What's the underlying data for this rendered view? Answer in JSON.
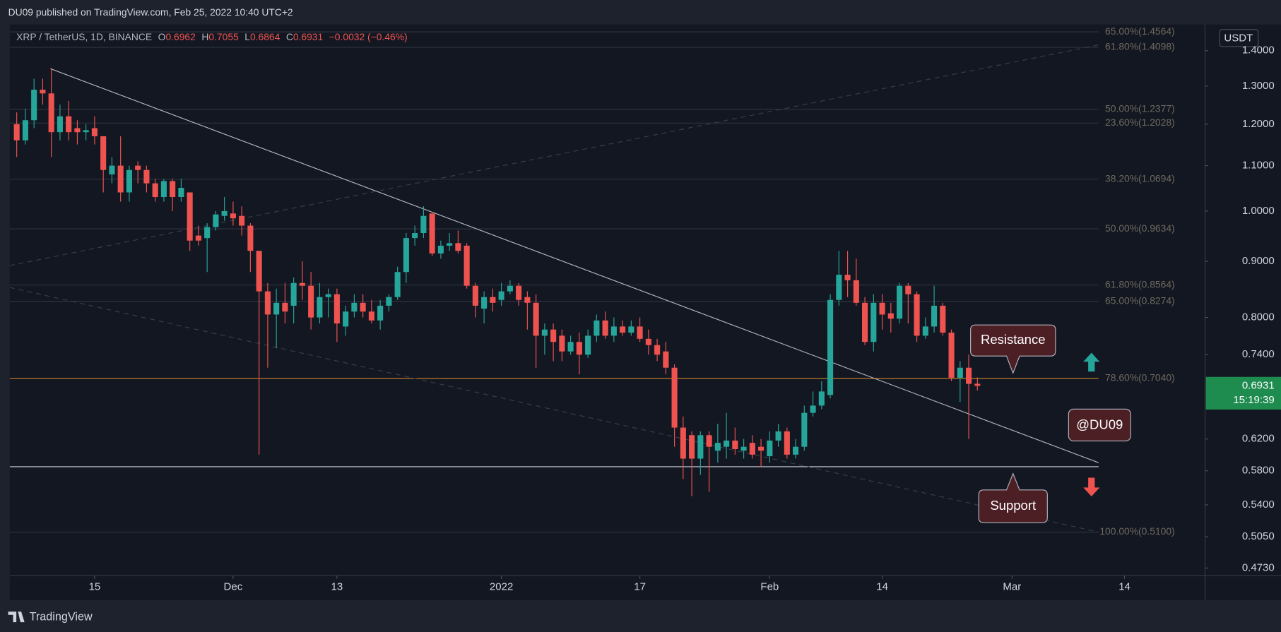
{
  "header": {
    "published": "DU09 published on TradingView.com, Feb 25, 2022 10:40 UTC+2"
  },
  "chart_data": {
    "type": "candlestick",
    "legend": {
      "symbol": "XRP / TetherUS, 1D, BINANCE",
      "labels": [
        "O",
        "H",
        "L",
        "C"
      ],
      "values": [
        0.6962,
        0.7055,
        0.6864,
        0.6931
      ],
      "change": "−0.0032 (−0.46%)"
    },
    "currency": "USDT",
    "log_scale": true,
    "grid": false,
    "up_color": "#26a69a",
    "down_color": "#ef5350",
    "xlim": [
      -0.8,
      137.3
    ],
    "xticks": [
      {
        "value": 9,
        "label": "15"
      },
      {
        "value": 25,
        "label": "Dec"
      },
      {
        "value": 37,
        "label": "13"
      },
      {
        "value": 56,
        "label": "2022"
      },
      {
        "value": 72,
        "label": "17"
      },
      {
        "value": 87,
        "label": "Feb"
      },
      {
        "value": 100,
        "label": "14"
      },
      {
        "value": 115,
        "label": "Mar"
      },
      {
        "value": 128,
        "label": "14"
      }
    ],
    "ylim": [
      0.4655,
      1.479
    ],
    "yticks": [
      {
        "value": 1.4,
        "label": "1.4000"
      },
      {
        "value": 1.3,
        "label": "1.3000"
      },
      {
        "value": 1.2,
        "label": "1.2000"
      },
      {
        "value": 1.1,
        "label": "1.1000"
      },
      {
        "value": 1.0,
        "label": "1.0000"
      },
      {
        "value": 0.9,
        "label": "0.9000"
      },
      {
        "value": 0.8,
        "label": "0.8000"
      },
      {
        "value": 0.74,
        "label": "0.7400"
      },
      {
        "value": 0.62,
        "label": "0.6200"
      },
      {
        "value": 0.58,
        "label": "0.5800"
      },
      {
        "value": 0.54,
        "label": "0.5400"
      },
      {
        "value": 0.505,
        "label": "0.5050"
      },
      {
        "value": 0.473,
        "label": "0.4730"
      }
    ],
    "candles": {
      "open": [
        1.2,
        1.16,
        1.21,
        1.29,
        1.28,
        1.18,
        1.22,
        1.19,
        1.18,
        1.19,
        1.17,
        1.08,
        1.1,
        1.04,
        1.1,
        1.09,
        1.06,
        1.03,
        1.065,
        1.03,
        1.04,
        0.95,
        0.945,
        0.967,
        0.99,
        0.995,
        0.99,
        0.97,
        0.92,
        0.845,
        0.805,
        0.825,
        0.82,
        0.86,
        0.855,
        0.8,
        0.835,
        0.84,
        0.785,
        0.81,
        0.825,
        0.81,
        0.795,
        0.82,
        0.835,
        0.88,
        0.945,
        0.955,
        0.995,
        0.915,
        0.93,
        0.935,
        0.93,
        0.855,
        0.815,
        0.835,
        0.83,
        0.845,
        0.855,
        0.835,
        0.825,
        0.77,
        0.78,
        0.77,
        0.745,
        0.76,
        0.74,
        0.77,
        0.795,
        0.77,
        0.785,
        0.775,
        0.785,
        0.765,
        0.755,
        0.745,
        0.72,
        0.635,
        0.625,
        0.595,
        0.625,
        0.605,
        0.61,
        0.618,
        0.605,
        0.615,
        0.61,
        0.598,
        0.618,
        0.63,
        0.6,
        0.61,
        0.655,
        0.665,
        0.68,
        0.83,
        0.875,
        0.865,
        0.825,
        0.76,
        0.825,
        0.807,
        0.798,
        0.855,
        0.84,
        0.77,
        0.785,
        0.82,
        0.775,
        0.705,
        0.72,
        0.6962
      ],
      "high": [
        1.23,
        1.24,
        1.32,
        1.32,
        1.35,
        1.25,
        1.26,
        1.21,
        1.2,
        1.22,
        1.17,
        1.12,
        1.17,
        1.1,
        1.11,
        1.1,
        1.07,
        1.07,
        1.07,
        1.07,
        1.04,
        0.97,
        0.975,
        1.0,
        1.03,
        1.02,
        1.01,
        0.975,
        0.92,
        0.86,
        0.85,
        0.86,
        0.87,
        0.9,
        0.88,
        0.86,
        0.85,
        0.85,
        0.82,
        0.84,
        0.84,
        0.83,
        0.83,
        0.84,
        0.89,
        0.955,
        0.97,
        1.01,
        0.995,
        0.94,
        0.955,
        0.96,
        0.935,
        0.86,
        0.845,
        0.85,
        0.86,
        0.865,
        0.86,
        0.845,
        0.84,
        0.79,
        0.79,
        0.78,
        0.77,
        0.775,
        0.78,
        0.805,
        0.81,
        0.8,
        0.795,
        0.795,
        0.8,
        0.78,
        0.765,
        0.76,
        0.725,
        0.65,
        0.63,
        0.63,
        0.63,
        0.64,
        0.655,
        0.635,
        0.62,
        0.625,
        0.62,
        0.63,
        0.64,
        0.635,
        0.62,
        0.665,
        0.685,
        0.7,
        0.84,
        0.92,
        0.92,
        0.905,
        0.835,
        0.84,
        0.84,
        0.825,
        0.86,
        0.86,
        0.845,
        0.8,
        0.855,
        0.825,
        0.78,
        0.73,
        0.74,
        0.7055
      ],
      "low": [
        1.12,
        1.15,
        1.19,
        1.25,
        1.12,
        1.16,
        1.16,
        1.15,
        1.16,
        1.15,
        1.04,
        1.06,
        1.02,
        1.02,
        1.06,
        1.04,
        1.02,
        1.02,
        1.0,
        1.02,
        0.92,
        0.93,
        0.88,
        0.96,
        0.98,
        0.97,
        0.95,
        0.88,
        0.6,
        0.72,
        0.75,
        0.79,
        0.79,
        0.83,
        0.78,
        0.79,
        0.8,
        0.76,
        0.77,
        0.8,
        0.8,
        0.79,
        0.78,
        0.81,
        0.83,
        0.86,
        0.93,
        0.945,
        0.91,
        0.905,
        0.92,
        0.915,
        0.85,
        0.8,
        0.79,
        0.81,
        0.82,
        0.84,
        0.82,
        0.78,
        0.72,
        0.74,
        0.73,
        0.73,
        0.74,
        0.71,
        0.735,
        0.76,
        0.765,
        0.76,
        0.77,
        0.77,
        0.76,
        0.74,
        0.73,
        0.71,
        0.61,
        0.57,
        0.55,
        0.575,
        0.555,
        0.59,
        0.595,
        0.6,
        0.595,
        0.595,
        0.585,
        0.59,
        0.61,
        0.595,
        0.595,
        0.605,
        0.65,
        0.66,
        0.675,
        0.82,
        0.835,
        0.82,
        0.755,
        0.745,
        0.78,
        0.775,
        0.79,
        0.79,
        0.76,
        0.765,
        0.775,
        0.77,
        0.7,
        0.67,
        0.62,
        0.6864
      ],
      "close": [
        1.16,
        1.21,
        1.29,
        1.28,
        1.18,
        1.22,
        1.18,
        1.18,
        1.185,
        1.17,
        1.09,
        1.1,
        1.04,
        1.09,
        1.09,
        1.06,
        1.03,
        1.065,
        1.03,
        1.05,
        0.94,
        0.94,
        0.967,
        0.993,
        1.0,
        0.985,
        0.97,
        0.92,
        0.845,
        0.805,
        0.825,
        0.81,
        0.86,
        0.855,
        0.8,
        0.835,
        0.84,
        0.79,
        0.81,
        0.825,
        0.81,
        0.795,
        0.82,
        0.835,
        0.88,
        0.945,
        0.955,
        0.99,
        0.915,
        0.93,
        0.935,
        0.92,
        0.855,
        0.82,
        0.835,
        0.825,
        0.845,
        0.855,
        0.83,
        0.825,
        0.77,
        0.78,
        0.76,
        0.745,
        0.76,
        0.74,
        0.77,
        0.795,
        0.77,
        0.785,
        0.775,
        0.785,
        0.765,
        0.755,
        0.74,
        0.72,
        0.635,
        0.595,
        0.595,
        0.625,
        0.61,
        0.615,
        0.618,
        0.607,
        0.61,
        0.6,
        0.605,
        0.618,
        0.63,
        0.6,
        0.61,
        0.655,
        0.665,
        0.685,
        0.83,
        0.875,
        0.865,
        0.825,
        0.76,
        0.825,
        0.805,
        0.798,
        0.855,
        0.84,
        0.77,
        0.785,
        0.82,
        0.775,
        0.705,
        0.72,
        0.696,
        0.6931
      ]
    },
    "fib_levels": [
      {
        "label": "65.00%(1.4564)",
        "value": 1.4564
      },
      {
        "label": "61.80%(1.4098)",
        "value": 1.4098
      },
      {
        "label": "50.00%(1.2377)",
        "value": 1.2377
      },
      {
        "label": "23.60%(1.2028)",
        "value": 1.2028
      },
      {
        "label": "38.20%(1.0694)",
        "value": 1.0694
      },
      {
        "label": "50.00%(0.9634)",
        "value": 0.9634
      },
      {
        "label": "61.80%(0.8564)",
        "value": 0.8564
      },
      {
        "label": "65.00%(0.8274)",
        "value": 0.8274
      },
      {
        "label": "78.60%(0.7040)",
        "value": 0.704,
        "color": "#c8862e"
      },
      {
        "label": "100.00%(0.5100)",
        "value": 0.51
      }
    ],
    "fib_color": "#2e323e",
    "horizontal_lines": [
      {
        "value": 0.585,
        "color": "#d1d4dc"
      }
    ],
    "trend_lines": [
      {
        "points": [
          [
            3.9,
            1.348
          ],
          [
            125,
            0.59
          ]
        ],
        "color": "#b2b5be",
        "dashed": false
      },
      {
        "points": [
          [
            -0.8,
            0.892
          ],
          [
            125,
            1.417
          ]
        ],
        "color": "#3a3e4a",
        "dashed": true
      },
      {
        "points": [
          [
            -0.8,
            0.852
          ],
          [
            125,
            0.51
          ]
        ],
        "color": "#3a3e4a",
        "dashed": true
      }
    ],
    "last_price": 0.6931,
    "countdown": "15:19:39",
    "annotations": [
      "Resistance",
      "@DU09",
      "Support"
    ]
  },
  "footer": {
    "brand": "TradingView"
  }
}
